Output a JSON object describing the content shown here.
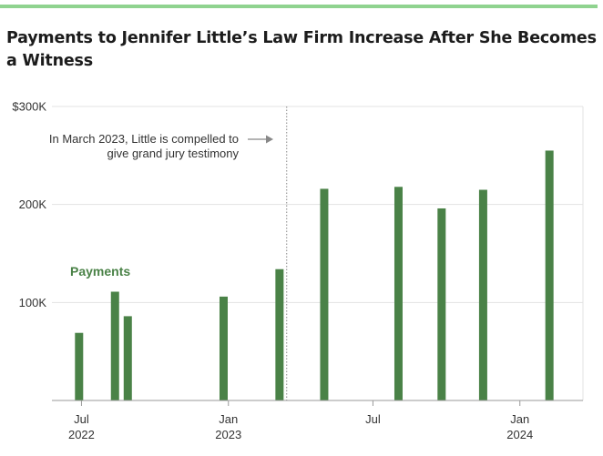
{
  "title": "Payments to Jennifer Little’s Law Firm Increase After She Becomes a Witness",
  "colors": {
    "bar": "#4a8247",
    "grid": "#e3e3e3",
    "axis": "#9a9a9a",
    "accent_rule": "#8fd38f",
    "marker": "#888888"
  },
  "chart_data": {
    "type": "bar",
    "title": "Payments to Jennifer Little’s Law Firm Increase After She Becomes a Witness",
    "xlabel": "",
    "ylabel": "",
    "ylim": [
      0,
      300000
    ],
    "xlim": [
      "2022-05-25",
      "2024-03-20"
    ],
    "y_ticks": [
      {
        "value": 300000,
        "label": "$300K"
      },
      {
        "value": 200000,
        "label": "200K"
      },
      {
        "value": 100000,
        "label": "100K"
      }
    ],
    "x_ticks": [
      {
        "date": "2022-07-01",
        "month": "Jul",
        "year": "2022"
      },
      {
        "date": "2023-01-01",
        "month": "Jan",
        "year": "2023"
      },
      {
        "date": "2023-07-01",
        "month": "Jul",
        "year": ""
      },
      {
        "date": "2024-01-01",
        "month": "Jan",
        "year": "2024"
      }
    ],
    "series": [
      {
        "name": "Payments",
        "points": [
          {
            "date": "2022-06-28",
            "value": 69000
          },
          {
            "date": "2022-08-12",
            "value": 111000
          },
          {
            "date": "2022-08-28",
            "value": 86000
          },
          {
            "date": "2022-12-26",
            "value": 106000
          },
          {
            "date": "2023-03-06",
            "value": 134000
          },
          {
            "date": "2023-05-01",
            "value": 216000
          },
          {
            "date": "2023-08-02",
            "value": 218000
          },
          {
            "date": "2023-09-25",
            "value": 196000
          },
          {
            "date": "2023-11-16",
            "value": 215000
          },
          {
            "date": "2024-02-07",
            "value": 255000
          }
        ]
      }
    ],
    "annotation": {
      "date": "2023-03-15",
      "lines": [
        "In March 2023, Little is compelled to",
        "give grand jury testimony"
      ]
    },
    "grid": true,
    "legend": "inline label"
  }
}
